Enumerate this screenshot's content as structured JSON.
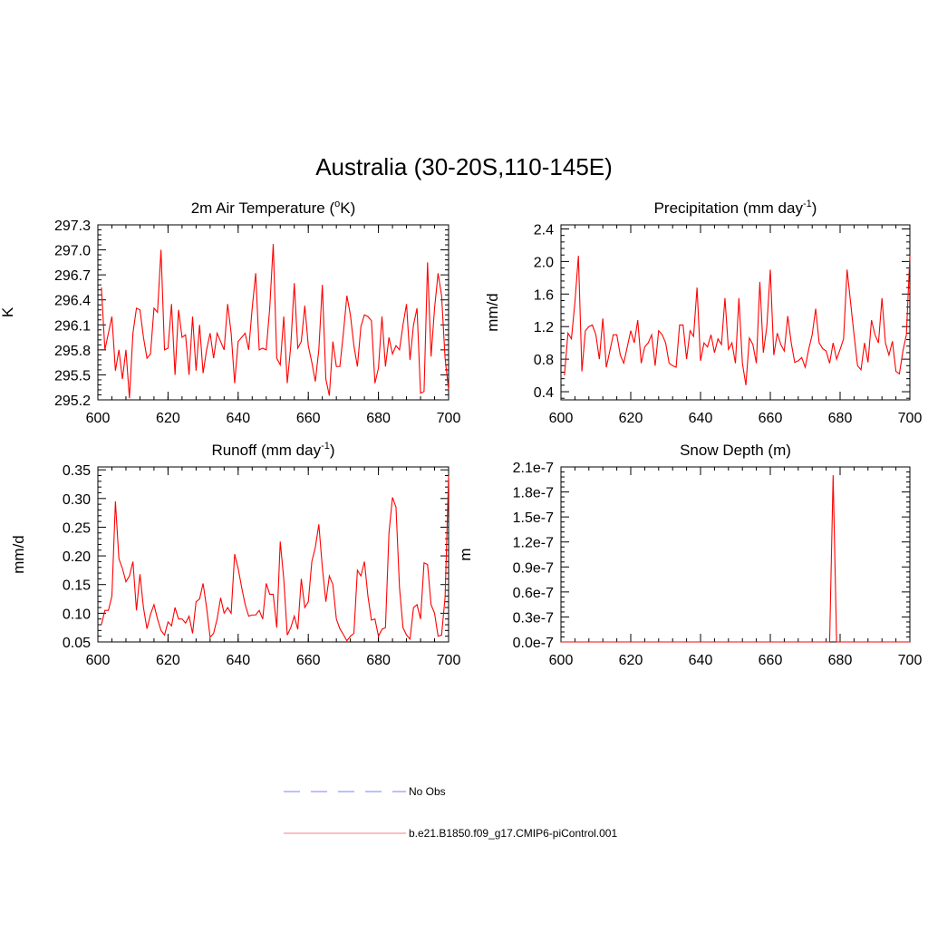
{
  "page": {
    "title": "Australia (30-20S,110-145E)",
    "series_color": "#ff0000",
    "obs_color": "#9999ff"
  },
  "legend": {
    "entries": [
      {
        "label": "No Obs",
        "style": "dashed",
        "color": "#9999ff"
      },
      {
        "label": "b.e21.B1850.f09_g17.CMIP6-piControl.001",
        "style": "solid",
        "color": "#ff9999"
      }
    ]
  },
  "chart_data": [
    {
      "id": "temp",
      "type": "line",
      "title": "2m Air Temperature (",
      "title_sup": "o",
      "title_after": "K)",
      "ylabel": "K",
      "xlim": [
        600,
        700
      ],
      "ylim": [
        295.2,
        297.3
      ],
      "xticks": [
        600,
        620,
        640,
        660,
        680,
        700
      ],
      "xtick_labels": [
        "600",
        "620",
        "640",
        "660",
        "680",
        "700"
      ],
      "yticks": [
        295.2,
        295.5,
        295.8,
        296.1,
        296.4,
        296.7,
        297.0,
        297.3
      ],
      "ytick_labels": [
        "295.2",
        "295.5",
        "295.8",
        "296.1",
        "296.4",
        "296.7",
        "297.0",
        "297.3"
      ],
      "x_start": 601,
      "values": [
        296.55,
        295.8,
        296.0,
        296.2,
        295.55,
        295.8,
        295.45,
        295.8,
        295.22,
        296.0,
        296.3,
        296.28,
        295.95,
        295.7,
        295.75,
        296.3,
        296.25,
        297.0,
        295.8,
        295.82,
        296.35,
        295.5,
        296.28,
        295.95,
        295.98,
        295.5,
        296.2,
        295.55,
        296.1,
        295.52,
        295.8,
        296.0,
        295.7,
        296.0,
        295.9,
        295.8,
        296.35,
        296.0,
        295.4,
        295.9,
        295.95,
        296.0,
        295.8,
        296.3,
        296.72,
        295.8,
        295.82,
        295.8,
        296.3,
        297.07,
        295.7,
        295.62,
        296.2,
        295.4,
        295.85,
        296.6,
        295.82,
        295.9,
        296.33,
        295.85,
        295.65,
        295.42,
        295.8,
        296.58,
        295.45,
        295.25,
        295.9,
        295.6,
        295.6,
        296.0,
        296.45,
        296.22,
        295.85,
        295.6,
        296.08,
        296.22,
        296.2,
        296.15,
        295.4,
        295.58,
        296.2,
        295.6,
        295.95,
        295.75,
        295.85,
        295.8,
        296.1,
        296.35,
        295.68,
        296.1,
        296.3,
        295.28,
        295.3,
        296.85,
        295.72,
        296.3,
        296.72,
        296.45,
        295.7,
        295.32
      ]
    },
    {
      "id": "precip",
      "type": "line",
      "title": "Precipitation (mm day",
      "title_sup": "-1",
      "title_after": ")",
      "ylabel": "mm/d",
      "xlim": [
        600,
        700
      ],
      "ylim": [
        0.3,
        2.45
      ],
      "xticks": [
        600,
        620,
        640,
        660,
        680,
        700
      ],
      "xtick_labels": [
        "600",
        "620",
        "640",
        "660",
        "680",
        "700"
      ],
      "yticks": [
        0.4,
        0.8,
        1.2,
        1.6,
        2.0,
        2.4
      ],
      "ytick_labels": [
        "0.4",
        "0.8",
        "1.2",
        "1.6",
        "2.0",
        "2.4"
      ],
      "x_start": 601,
      "values": [
        0.6,
        1.12,
        1.05,
        1.5,
        2.07,
        0.65,
        1.15,
        1.2,
        1.22,
        1.1,
        0.8,
        1.3,
        0.7,
        0.9,
        1.1,
        1.1,
        0.85,
        0.75,
        0.95,
        1.15,
        1.0,
        1.28,
        0.75,
        0.95,
        1.0,
        1.1,
        0.72,
        1.15,
        1.1,
        1.0,
        0.75,
        0.72,
        0.7,
        1.22,
        1.22,
        0.8,
        1.15,
        1.08,
        1.68,
        0.78,
        1.0,
        0.95,
        1.1,
        0.88,
        1.05,
        0.98,
        1.55,
        0.92,
        1.0,
        0.75,
        1.55,
        0.75,
        0.48,
        1.06,
        0.98,
        0.75,
        1.75,
        0.88,
        1.2,
        1.9,
        0.85,
        1.12,
        0.98,
        0.9,
        1.33,
        1.0,
        0.76,
        0.78,
        0.82,
        0.7,
        0.92,
        1.1,
        1.42,
        1.0,
        0.93,
        0.9,
        0.75,
        1.0,
        0.8,
        0.92,
        1.05,
        1.9,
        1.5,
        1.1,
        0.72,
        0.67,
        1.0,
        0.76,
        1.28,
        1.1,
        1.0,
        1.55,
        1.0,
        0.85,
        1.02,
        0.65,
        0.62,
        0.9,
        1.1,
        2.07
      ]
    },
    {
      "id": "runoff",
      "type": "line",
      "title": "Runoff (mm day",
      "title_sup": "-1",
      "title_after": ")",
      "ylabel": "mm/d",
      "xlim": [
        600,
        700
      ],
      "ylim": [
        0.05,
        0.355
      ],
      "xticks": [
        600,
        620,
        640,
        660,
        680,
        700
      ],
      "xtick_labels": [
        "600",
        "620",
        "640",
        "660",
        "680",
        "700"
      ],
      "yticks": [
        0.05,
        0.1,
        0.15,
        0.2,
        0.25,
        0.3,
        0.35
      ],
      "ytick_labels": [
        "0.05",
        "0.10",
        "0.15",
        "0.20",
        "0.25",
        "0.30",
        "0.35"
      ],
      "x_start": 601,
      "values": [
        0.08,
        0.105,
        0.105,
        0.13,
        0.295,
        0.195,
        0.178,
        0.155,
        0.165,
        0.19,
        0.105,
        0.168,
        0.11,
        0.073,
        0.098,
        0.115,
        0.09,
        0.07,
        0.062,
        0.085,
        0.078,
        0.11,
        0.09,
        0.09,
        0.083,
        0.095,
        0.065,
        0.12,
        0.125,
        0.152,
        0.11,
        0.058,
        0.065,
        0.09,
        0.127,
        0.1,
        0.11,
        0.1,
        0.203,
        0.178,
        0.145,
        0.115,
        0.095,
        0.097,
        0.097,
        0.105,
        0.09,
        0.152,
        0.133,
        0.133,
        0.075,
        0.225,
        0.16,
        0.062,
        0.075,
        0.095,
        0.072,
        0.16,
        0.11,
        0.12,
        0.19,
        0.215,
        0.255,
        0.18,
        0.12,
        0.165,
        0.15,
        0.09,
        0.073,
        0.063,
        0.052,
        0.06,
        0.065,
        0.175,
        0.165,
        0.19,
        0.13,
        0.088,
        0.09,
        0.06,
        0.072,
        0.075,
        0.24,
        0.302,
        0.285,
        0.145,
        0.075,
        0.062,
        0.055,
        0.11,
        0.115,
        0.09,
        0.188,
        0.185,
        0.115,
        0.1,
        0.06,
        0.062,
        0.128,
        0.34
      ]
    },
    {
      "id": "snow",
      "type": "line",
      "title": "Snow Depth (m)",
      "title_sup": "",
      "title_after": "",
      "ylabel": "m",
      "xlim": [
        600,
        700
      ],
      "ylim": [
        0.0,
        2.1e-07
      ],
      "xticks": [
        600,
        620,
        640,
        660,
        680,
        700
      ],
      "xtick_labels": [
        "600",
        "620",
        "640",
        "660",
        "680",
        "700"
      ],
      "yticks": [
        0.0,
        3e-08,
        6e-08,
        9e-08,
        1.2e-07,
        1.5e-07,
        1.8e-07,
        2.1e-07
      ],
      "ytick_labels": [
        "0.0e-7",
        "0.3e-7",
        "0.6e-7",
        "0.9e-7",
        "1.2e-7",
        "1.5e-7",
        "1.8e-7",
        "2.1e-7"
      ],
      "x_start": 600,
      "x_values": [
        600,
        677,
        678,
        679,
        700
      ],
      "values": [
        0.0,
        0.0,
        2e-07,
        0.0,
        0.0
      ]
    }
  ]
}
